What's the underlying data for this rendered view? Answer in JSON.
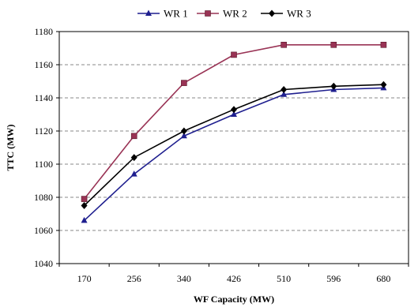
{
  "chart_data": {
    "type": "line",
    "title": "",
    "xlabel": "WF Capacity (MW)",
    "ylabel": "TTC (MW)",
    "categories": [
      "170",
      "256",
      "340",
      "426",
      "510",
      "596",
      "680"
    ],
    "ylim": [
      1040,
      1180
    ],
    "yticks": [
      "1040",
      "1060",
      "1080",
      "1100",
      "1120",
      "1140",
      "1160",
      "1180"
    ],
    "grid": "horizontal dashed",
    "legend_position": "top-center",
    "series": [
      {
        "name": "WR 1",
        "color": "#1f1f8f",
        "marker": "triangle",
        "values": [
          1066,
          1094,
          1117,
          1130,
          1142,
          1145,
          1146
        ]
      },
      {
        "name": "WR 2",
        "color": "#993355",
        "marker": "square",
        "values": [
          1079,
          1117,
          1149,
          1166,
          1172,
          1172,
          1172
        ]
      },
      {
        "name": "WR 3",
        "color": "#000000",
        "marker": "diamond",
        "values": [
          1075,
          1104,
          1120,
          1133,
          1145,
          1147,
          1148
        ]
      }
    ]
  }
}
